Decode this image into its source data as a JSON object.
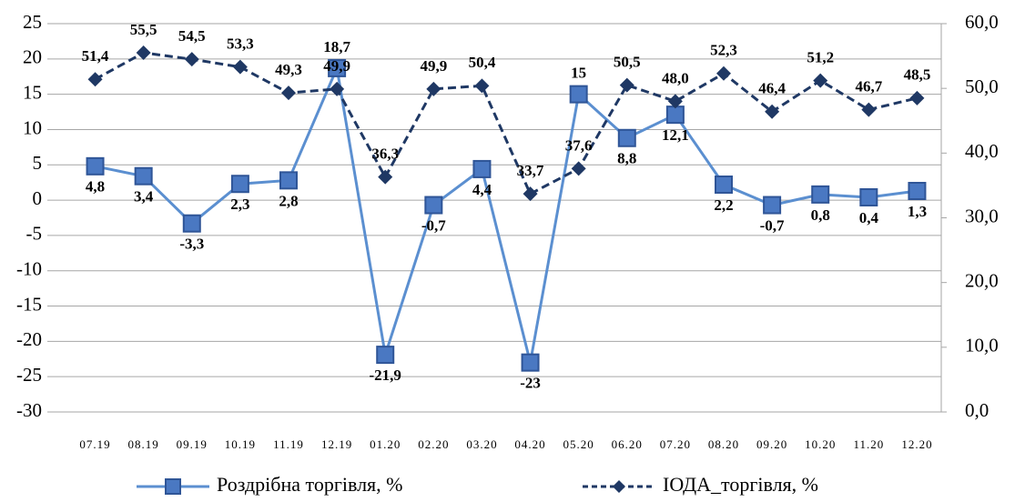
{
  "chart_data": {
    "type": "line",
    "categories": [
      "07.19",
      "08.19",
      "09.19",
      "10.19",
      "11.19",
      "12.19",
      "01.20",
      "02.20",
      "03.20",
      "04.20",
      "05.20",
      "06.20",
      "07.20",
      "08.20",
      "09.20",
      "10.20",
      "11.20",
      "12.20"
    ],
    "series": [
      {
        "name": "Роздрібна торгівля, %",
        "color": "#5b8fd0",
        "marker": "square",
        "values": [
          4.8,
          3.4,
          -3.3,
          2.3,
          2.8,
          18.7,
          -21.9,
          -0.7,
          4.4,
          -23,
          15,
          8.8,
          12.1,
          2.2,
          -0.7,
          0.8,
          0.4,
          1.3
        ],
        "value_labels": [
          "4,8",
          "3,4",
          "-3,3",
          "2,3",
          "2,8",
          "18,7",
          "-21,9",
          "-0,7",
          "4,4",
          "-23",
          "15",
          "8,8",
          "12,1",
          "2,2",
          "-0,7",
          "0,8",
          "0,4",
          "1,3"
        ]
      },
      {
        "name": "ІОДА_торгівля, %",
        "color": "#1f3864",
        "marker": "diamond",
        "dashed": true,
        "axis": "y2",
        "values": [
          51.4,
          55.5,
          54.5,
          53.3,
          49.3,
          49.9,
          36.3,
          49.9,
          50.4,
          33.7,
          37.6,
          50.5,
          48.0,
          52.3,
          46.4,
          51.2,
          46.7,
          48.5
        ],
        "value_labels": [
          "51,4",
          "55,5",
          "54,5",
          "53,3",
          "49,3",
          "49,9",
          "36,3",
          "49,9",
          "50,4",
          "33,7",
          "37,6",
          "50,5",
          "48,0",
          "52,3",
          "46,4",
          "51,2",
          "46,7",
          "48,5"
        ]
      }
    ],
    "ylim": [
      -30,
      25
    ],
    "yticks": [
      -30,
      -25,
      -20,
      -15,
      -10,
      -5,
      0,
      5,
      10,
      15,
      20,
      25
    ],
    "y2lim": [
      0,
      60
    ],
    "y2ticks": [
      {
        "value": 0,
        "label": "0,0"
      },
      {
        "value": 10,
        "label": "10,0"
      },
      {
        "value": 20,
        "label": "20,0"
      },
      {
        "value": 30,
        "label": "30,0"
      },
      {
        "value": 40,
        "label": "40,0"
      },
      {
        "value": 50,
        "label": "50,0"
      },
      {
        "value": 60,
        "label": "60,0"
      }
    ],
    "grid": true,
    "legend": "bottom"
  }
}
